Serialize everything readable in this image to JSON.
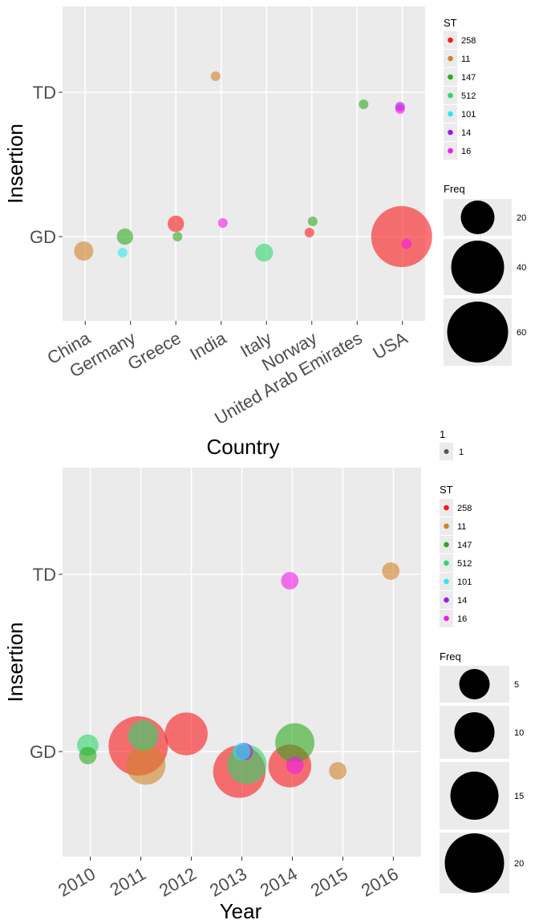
{
  "chart_data": [
    {
      "type": "scatter",
      "xlabel": "Country",
      "ylabel": "Insertion",
      "categories": [
        "China",
        "Germany",
        "Greece",
        "India",
        "Italy",
        "Norway",
        "United Arab Emirates",
        "USA"
      ],
      "y_categories": [
        "GD",
        "TD"
      ],
      "points": [
        {
          "x": "China",
          "y": "GD",
          "st": "11",
          "freq": 7
        },
        {
          "x": "Germany",
          "y": "GD",
          "st": "147",
          "freq": 5
        },
        {
          "x": "Germany",
          "y": "GD",
          "st": "101",
          "freq": 1
        },
        {
          "x": "Greece",
          "y": "GD",
          "st": "258",
          "freq": 5
        },
        {
          "x": "Greece",
          "y": "GD",
          "st": "147",
          "freq": 1
        },
        {
          "x": "India",
          "y": "TD",
          "st": "11",
          "freq": 1
        },
        {
          "x": "India",
          "y": "GD",
          "st": "16",
          "freq": 1
        },
        {
          "x": "Italy",
          "y": "GD",
          "st": "512",
          "freq": 6
        },
        {
          "x": "Norway",
          "y": "GD",
          "st": "147",
          "freq": 1
        },
        {
          "x": "Norway",
          "y": "GD",
          "st": "258",
          "freq": 1
        },
        {
          "x": "United Arab Emirates",
          "y": "TD",
          "st": "147",
          "freq": 1
        },
        {
          "x": "USA",
          "y": "TD",
          "st": "14",
          "freq": 1
        },
        {
          "x": "USA",
          "y": "TD",
          "st": "16",
          "freq": 1
        },
        {
          "x": "USA",
          "y": "GD",
          "st": "258",
          "freq": 70
        },
        {
          "x": "USA",
          "y": "GD",
          "st": "16",
          "freq": 2
        }
      ],
      "legend_st": {
        "title": "ST",
        "entries": [
          "258",
          "11",
          "147",
          "512",
          "101",
          "14",
          "16"
        ]
      },
      "legend_freq": {
        "title": "Freq",
        "entries": [
          20,
          40,
          60
        ]
      },
      "legend_one": {
        "title": "1",
        "entries": [
          "1"
        ]
      }
    },
    {
      "type": "scatter",
      "xlabel": "Year",
      "ylabel": "Insertion",
      "categories": [
        "2010",
        "2011",
        "2012",
        "2013",
        "2014",
        "2015",
        "2016"
      ],
      "y_categories": [
        "GD",
        "TD"
      ],
      "points": [
        {
          "x": 2009.95,
          "y": "GD",
          "st": "512",
          "freq": 3
        },
        {
          "x": 2009.95,
          "y": "GD",
          "st": "147",
          "freq": 2
        },
        {
          "x": 2010.95,
          "y": "GD",
          "st": "258",
          "freq": 23
        },
        {
          "x": 2011.1,
          "y": "GD",
          "st": "11",
          "freq": 10
        },
        {
          "x": 2011.05,
          "y": "GD",
          "st": "512",
          "freq": 6
        },
        {
          "x": 2011.9,
          "y": "GD",
          "st": "258",
          "freq": 12
        },
        {
          "x": 2012.95,
          "y": "GD",
          "st": "258",
          "freq": 18
        },
        {
          "x": 2013.1,
          "y": "GD",
          "st": "512",
          "freq": 10
        },
        {
          "x": 2013.05,
          "y": "GD",
          "st": "14",
          "freq": 2
        },
        {
          "x": 2013.0,
          "y": "GD",
          "st": "101",
          "freq": 2
        },
        {
          "x": 2013.95,
          "y": "GD",
          "st": "258",
          "freq": 12
        },
        {
          "x": 2014.05,
          "y": "GD",
          "st": "147",
          "freq": 10
        },
        {
          "x": 2014.05,
          "y": "GD",
          "st": "16",
          "freq": 2
        },
        {
          "x": 2014.9,
          "y": "GD",
          "st": "11",
          "freq": 2
        },
        {
          "x": 2013.95,
          "y": "TD",
          "st": "16",
          "freq": 2
        },
        {
          "x": 2015.95,
          "y": "TD",
          "st": "11",
          "freq": 2
        }
      ],
      "legend_st": {
        "title": "ST",
        "entries": [
          "258",
          "11",
          "147",
          "512",
          "101",
          "14",
          "16"
        ]
      },
      "legend_freq": {
        "title": "Freq",
        "entries": [
          5,
          10,
          15,
          20
        ]
      }
    }
  ],
  "colors": {
    "258": "#F8766D",
    "11": "#C49A00",
    "147": "#53B400",
    "512": "#00C094",
    "101": "#00B6EB",
    "14": "#A58AFF",
    "16": "#FB61D7",
    "panel": "#EBEBEB",
    "grid": "#FFFFFF"
  }
}
